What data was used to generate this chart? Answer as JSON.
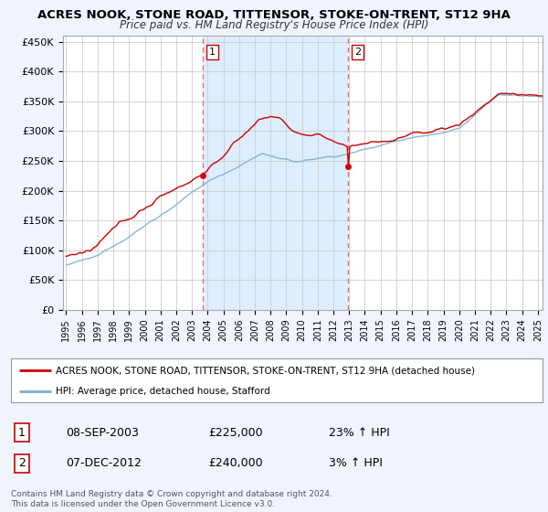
{
  "title": "ACRES NOOK, STONE ROAD, TITTENSOR, STOKE-ON-TRENT, ST12 9HA",
  "subtitle": "Price paid vs. HM Land Registry's House Price Index (HPI)",
  "ylabel_ticks": [
    "£0",
    "£50K",
    "£100K",
    "£150K",
    "£200K",
    "£250K",
    "£300K",
    "£350K",
    "£400K",
    "£450K"
  ],
  "ytick_vals": [
    0,
    50000,
    100000,
    150000,
    200000,
    250000,
    300000,
    350000,
    400000,
    450000
  ],
  "ylim": [
    0,
    460000
  ],
  "xlim_start": 1994.8,
  "xlim_end": 2025.3,
  "red_line_label": "ACRES NOOK, STONE ROAD, TITTENSOR, STOKE-ON-TRENT, ST12 9HA (detached house)",
  "blue_line_label": "HPI: Average price, detached house, Stafford",
  "sale1_date": "08-SEP-2003",
  "sale1_price": "£225,000",
  "sale1_pct": "23% ↑ HPI",
  "sale1_year": 2003.69,
  "sale1_value": 225000,
  "sale2_date": "07-DEC-2012",
  "sale2_price": "£240,000",
  "sale2_pct": "3% ↑ HPI",
  "sale2_year": 2012.93,
  "sale2_value": 240000,
  "footer": "Contains HM Land Registry data © Crown copyright and database right 2024.\nThis data is licensed under the Open Government Licence v3.0.",
  "bg_color": "#f0f4ff",
  "plot_bg_color": "#ffffff",
  "grid_color": "#cccccc",
  "red_color": "#cc0000",
  "blue_color": "#7bafd4",
  "vline_color": "#e87070",
  "shade_color": "#ddeeff"
}
